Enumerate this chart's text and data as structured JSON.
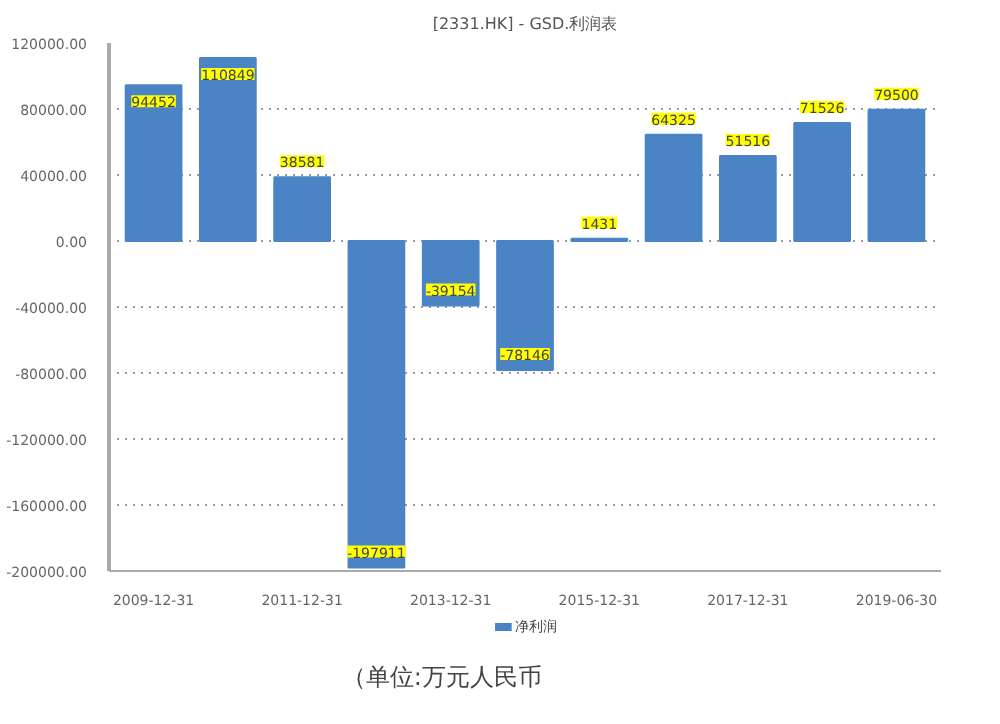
{
  "chart_data": {
    "type": "bar",
    "title": "[2331.HK] - GSD.利润表",
    "categories": [
      "2009-12-31",
      null,
      "2011-12-31",
      null,
      "2013-12-31",
      null,
      "2015-12-31",
      null,
      "2017-12-31",
      null,
      "2019-06-30"
    ],
    "series": [
      {
        "name": "净利润",
        "color": "#4a84c4",
        "values": [
          94452,
          110849,
          38581,
          -197911,
          -39154,
          -78146,
          1431,
          64325,
          51516,
          71526,
          79500
        ]
      }
    ],
    "ylim": [
      -200000,
      120000
    ],
    "yticks": [
      {
        "value": -200000,
        "label": "-200000.00"
      },
      {
        "value": -160000,
        "label": "-160000.00"
      },
      {
        "value": -120000,
        "label": "-120000.00"
      },
      {
        "value": -80000,
        "label": "-80000.00"
      },
      {
        "value": -40000,
        "label": "-40000.00"
      },
      {
        "value": 0,
        "label": "0.00"
      },
      {
        "value": 40000,
        "label": "40000.00"
      },
      {
        "value": 80000,
        "label": "80000.00"
      },
      {
        "value": 120000,
        "label": "120000.00"
      }
    ],
    "grid": "y",
    "legend": "bottom",
    "data_labels": true,
    "annotations": [
      "（单位:万元人民币"
    ]
  }
}
